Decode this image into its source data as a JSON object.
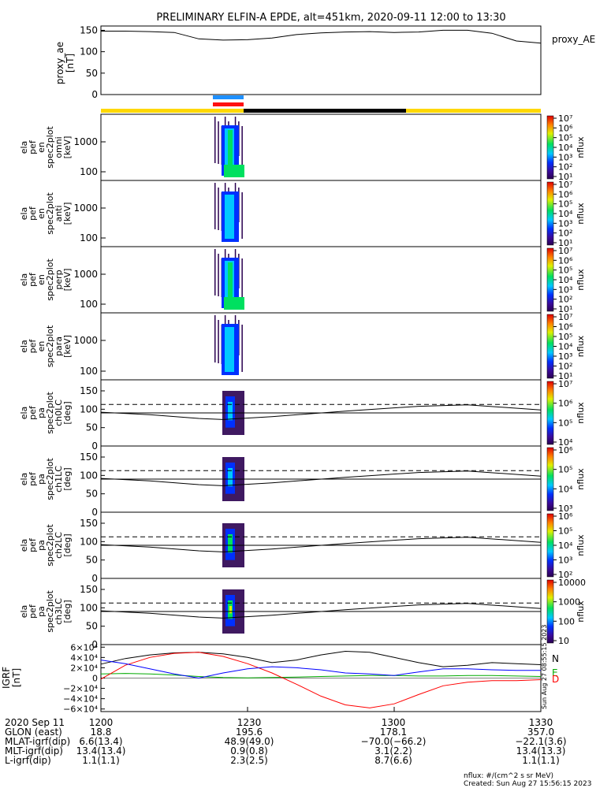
{
  "title": "PRELIMINARY ELFIN-A EPDE, alt=451km, 2020-09-11 12:00 to 13:30",
  "chart_data": [
    {
      "type": "line",
      "panel": "proxy_ae",
      "ylabel_lines": [
        "proxy_ae",
        "[nT]"
      ],
      "legend": "proxy_AE",
      "yticks": [
        "0",
        "50",
        "100",
        "150"
      ],
      "ylim": [
        0,
        160
      ],
      "x_minutes": [
        0,
        5,
        10,
        15,
        20,
        25,
        30,
        35,
        40,
        45,
        50,
        55,
        60,
        65,
        70,
        75,
        80,
        85,
        90
      ],
      "values": [
        148,
        148,
        147,
        145,
        130,
        127,
        128,
        132,
        140,
        144,
        146,
        147,
        145,
        146,
        150,
        150,
        143,
        125,
        120
      ]
    },
    {
      "type": "heatmap",
      "panel": "spectrogram",
      "ylabel_lines": [
        "ela",
        "pef",
        "en",
        "spec2plot",
        "omni",
        "[keV]"
      ],
      "yticks": [
        "100",
        "1000"
      ],
      "cbar_ticks": [
        "10¹",
        "10²",
        "10³",
        "10⁴",
        "10⁵",
        "10⁶",
        "10⁷"
      ],
      "cbar_label": "nflux"
    },
    {
      "type": "heatmap",
      "panel": "spectrogram",
      "ylabel_lines": [
        "ela",
        "pef",
        "en",
        "spec2plot",
        "anti",
        "[keV]"
      ],
      "yticks": [
        "100",
        "1000"
      ],
      "cbar_ticks": [
        "10¹",
        "10²",
        "10³",
        "10⁴",
        "10⁵",
        "10⁶",
        "10⁷"
      ],
      "cbar_label": "nflux"
    },
    {
      "type": "heatmap",
      "panel": "spectrogram",
      "ylabel_lines": [
        "ela",
        "pef",
        "en",
        "spec2plot",
        "perp",
        "[keV]"
      ],
      "yticks": [
        "100",
        "1000"
      ],
      "cbar_ticks": [
        "10¹",
        "10²",
        "10³",
        "10⁴",
        "10⁵",
        "10⁶",
        "10⁷"
      ],
      "cbar_label": "nflux"
    },
    {
      "type": "heatmap",
      "panel": "spectrogram",
      "ylabel_lines": [
        "ela",
        "pef",
        "en",
        "spec2plot",
        "para",
        "[keV]"
      ],
      "yticks": [
        "100",
        "1000"
      ],
      "cbar_ticks": [
        "10¹",
        "10²",
        "10³",
        "10⁴",
        "10⁵",
        "10⁶",
        "10⁷"
      ],
      "cbar_label": "nflux"
    },
    {
      "type": "heatmap",
      "panel": "pitch_angle",
      "ylabel_lines": [
        "ela",
        "pef",
        "pa",
        "spec2plot",
        "ch0LC",
        "[deg]"
      ],
      "yticks": [
        "0",
        "50",
        "100",
        "150"
      ],
      "cbar_ticks": [
        "10⁴",
        "10⁵",
        "10⁶",
        "10⁷"
      ],
      "cbar_label": "nflux"
    },
    {
      "type": "heatmap",
      "panel": "pitch_angle",
      "ylabel_lines": [
        "ela",
        "pef",
        "pa",
        "spec2plot",
        "ch1LC",
        "[deg]"
      ],
      "yticks": [
        "0",
        "50",
        "100",
        "150"
      ],
      "cbar_ticks": [
        "10³",
        "10⁴",
        "10⁵",
        "10⁶"
      ],
      "cbar_label": "nflux"
    },
    {
      "type": "heatmap",
      "panel": "pitch_angle",
      "ylabel_lines": [
        "ela",
        "pef",
        "pa",
        "spec2plot",
        "ch2LC",
        "[deg]"
      ],
      "yticks": [
        "0",
        "50",
        "100",
        "150"
      ],
      "cbar_ticks": [
        "10²",
        "10³",
        "10⁴",
        "10⁵",
        "10⁶"
      ],
      "cbar_label": "nflux"
    },
    {
      "type": "heatmap",
      "panel": "pitch_angle",
      "ylabel_lines": [
        "ela",
        "pef",
        "pa",
        "spec2plot",
        "ch3LC",
        "[deg]"
      ],
      "yticks": [
        "0",
        "50",
        "100",
        "150"
      ],
      "cbar_ticks": [
        "10",
        "100",
        "1000",
        "10000"
      ],
      "cbar_label": "nflux"
    },
    {
      "type": "line",
      "panel": "igrf",
      "ylabel_lines": [
        "IGRF",
        "[nT]"
      ],
      "yticks": [
        "−6×10⁴",
        "−4×10⁴",
        "−2×10⁴",
        "0",
        "2×10⁴",
        "4×10⁴",
        "6×10⁴"
      ],
      "ylim": [
        -65000,
        65000
      ],
      "x_minutes": [
        0,
        5,
        10,
        15,
        20,
        25,
        30,
        35,
        40,
        45,
        50,
        55,
        60,
        65,
        70,
        75,
        80,
        85,
        90
      ],
      "series": [
        {
          "name": "N",
          "color": "#000000",
          "values": [
            27000,
            38000,
            45000,
            49000,
            50000,
            47000,
            40000,
            30000,
            35000,
            45000,
            52000,
            50000,
            40000,
            30000,
            22000,
            25000,
            30000,
            28000,
            26000
          ]
        },
        {
          "name": "E",
          "color": "#00aa00",
          "values": [
            8000,
            9000,
            8000,
            6000,
            3000,
            1000,
            500,
            1000,
            2000,
            3000,
            4000,
            5000,
            5000,
            4000,
            4000,
            5000,
            5000,
            4000,
            3000
          ]
        },
        {
          "name": "D",
          "color": "#ff0000",
          "values": [
            -2000,
            25000,
            40000,
            48000,
            50000,
            42000,
            28000,
            10000,
            -12000,
            -35000,
            -52000,
            -58000,
            -50000,
            -32000,
            -15000,
            -8000,
            -5000,
            -5000,
            -3000
          ]
        },
        {
          "name": "",
          "color": "#0000ff",
          "values": [
            35000,
            28000,
            18000,
            8000,
            0,
            10000,
            18000,
            22000,
            20000,
            16000,
            10000,
            8000,
            5000,
            12000,
            18000,
            18000,
            16000,
            15000,
            15000
          ]
        }
      ]
    }
  ],
  "x_ticks": [
    "1200",
    "1230",
    "1300",
    "1330"
  ],
  "timestamp_vertical": "Sun Aug 27 08:55:15 2023",
  "ephemeris": [
    {
      "label": "2020 Sep 11",
      "values": [
        "1200",
        "1230",
        "1300",
        "1330"
      ]
    },
    {
      "label": "GLON (east)",
      "values": [
        "18.8",
        "195.6",
        "178.1",
        "357.0"
      ]
    },
    {
      "label": "MLAT-igrf(dip)",
      "values": [
        "6.6(13.4)",
        "48.9(49.0)",
        "−70.0(−66.2)",
        "−22.1(3.6)"
      ]
    },
    {
      "label": "MLT-igrf(dip)",
      "values": [
        "13.4(13.4)",
        "0.9(0.8)",
        "3.1(2.2)",
        "13.4(13.3)"
      ]
    },
    {
      "label": "L-igrf(dip)",
      "values": [
        "1.1(1.1)",
        "2.3(2.5)",
        "8.7(6.6)",
        "1.1(1.1)"
      ]
    }
  ],
  "footer": {
    "units": "nflux: #/(cm^2 s sr MeV)",
    "created": "Created: Sun Aug 27 15:56:15 2023"
  }
}
